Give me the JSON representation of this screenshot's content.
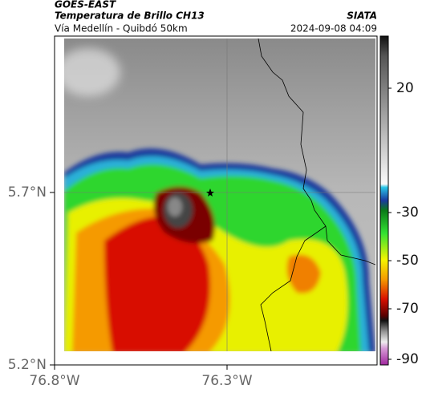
{
  "header": {
    "satellite": "GOES-EAST",
    "product": "Temperatura de Brillo CH13",
    "source": "SIATA",
    "route": "Vía Medellín - Quibdó 50km",
    "timestamp": "2024-09-08 04:09"
  },
  "map": {
    "lat_labels": [
      "5.7°N",
      "5.2°N"
    ],
    "lon_labels": [
      "76.8°W",
      "76.3°W"
    ]
  },
  "colorbar": {
    "tick_labels": [
      "20",
      "-30",
      "-50",
      "-70",
      "-90"
    ]
  }
}
